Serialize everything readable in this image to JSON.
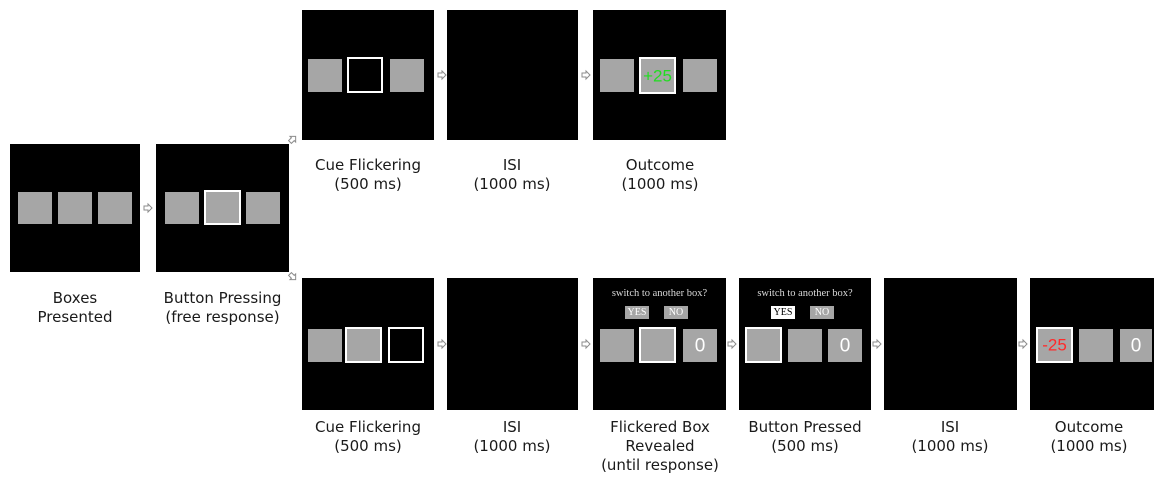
{
  "colors": {
    "panel": "#000000",
    "box": "#a6a6a6",
    "outline": "#ffffff",
    "gain": "#22dd22",
    "loss": "#ff2a2a",
    "arrow": "#bfbfbf"
  },
  "icons": [
    "right-arrow-icon",
    "diagonal-up-arrow-icon",
    "diagonal-down-arrow-icon"
  ],
  "common": {
    "prompt": "switch to another box?",
    "yes": "YES",
    "no": "NO"
  },
  "start": {
    "boxes_presented": {
      "label": [
        "Boxes",
        "Presented"
      ]
    },
    "button_pressing": {
      "label": [
        "Button Pressing",
        "(free response)"
      ]
    }
  },
  "top": {
    "cue": {
      "label": [
        "Cue Flickering",
        "(500 ms)"
      ]
    },
    "isi": {
      "label": [
        "ISI",
        "(1000 ms)"
      ]
    },
    "outcome": {
      "label": [
        "Outcome",
        "(1000 ms)"
      ],
      "value": "+25"
    }
  },
  "bottom": {
    "cue": {
      "label": [
        "Cue Flickering",
        "(500 ms)"
      ]
    },
    "isi1": {
      "label": [
        "ISI",
        "(1000 ms)"
      ]
    },
    "revealed": {
      "label": [
        "Flickered Box",
        "Revealed",
        "(until response)"
      ],
      "value": "0"
    },
    "pressed": {
      "label": [
        "Button Pressed",
        "(500 ms)"
      ],
      "value": "0"
    },
    "isi2": {
      "label": [
        "ISI",
        "(1000 ms)"
      ]
    },
    "outcome": {
      "label": [
        "Outcome",
        "(1000 ms)"
      ],
      "value_loss": "-25",
      "value_other": "0"
    }
  }
}
